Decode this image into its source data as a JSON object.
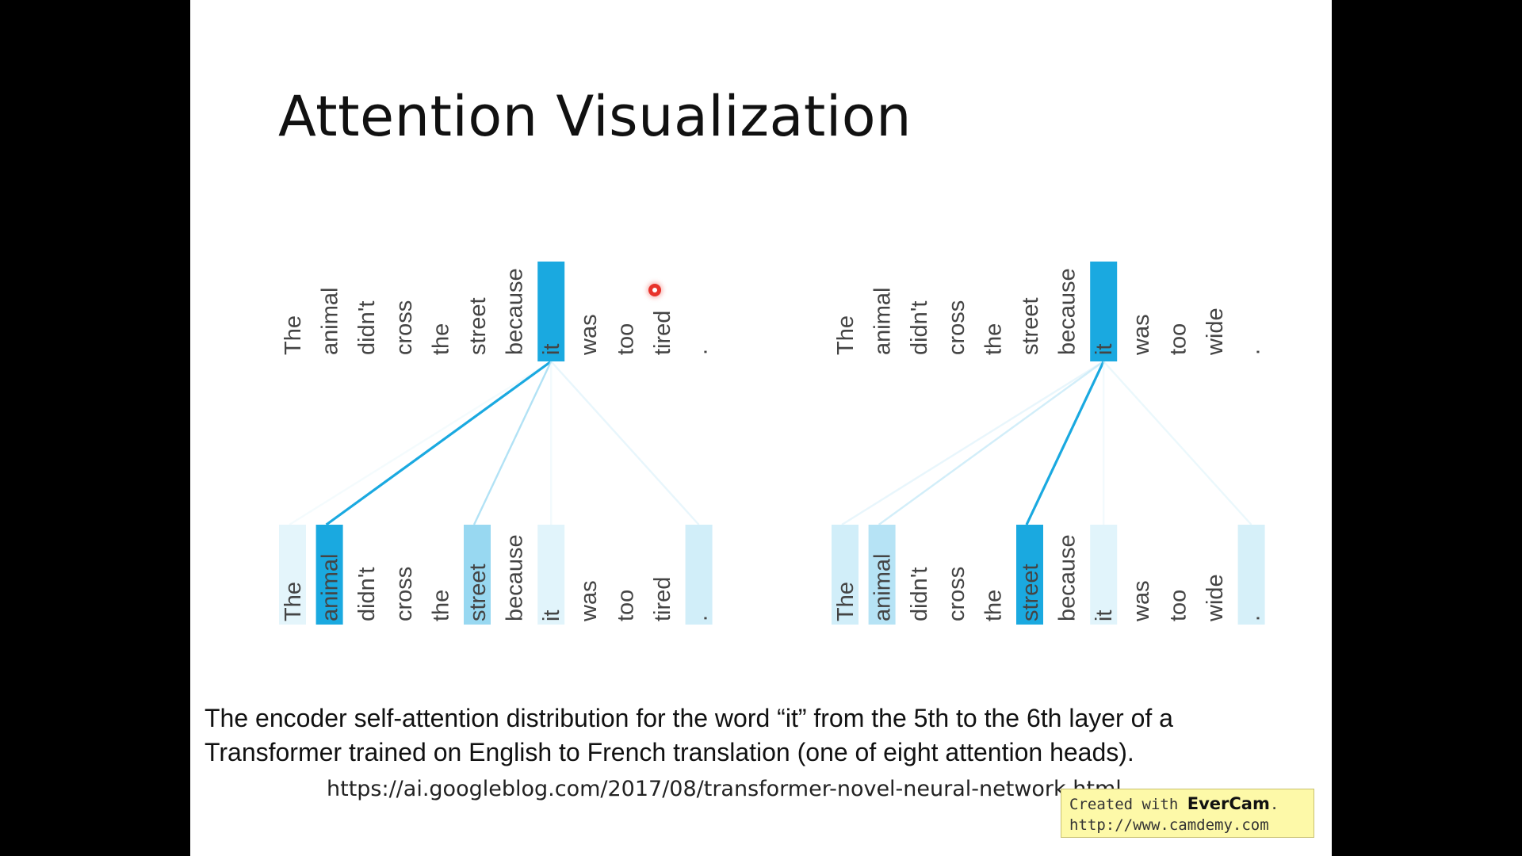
{
  "slide": {
    "title": "Attention Visualization",
    "caption_line1": "The encoder self-attention distribution for the word “it” from the 5th to the 6th layer of a",
    "caption_line2": "Transformer trained on English to French translation (one of eight attention heads).",
    "source_url": "https://ai.googleblog.com/2017/08/transformer-novel-neural-network.html"
  },
  "watermark": {
    "created_with": "Created with",
    "brand": "EverCam",
    "url": "http://www.camdemy.com"
  },
  "colors": {
    "accent": "#1aa9e0",
    "background": "#ffffff",
    "overlay": "#fdf9a8",
    "cursor": "#e8332b"
  },
  "diagrams": [
    {
      "query_word": "it",
      "tokens": [
        "The",
        "animal",
        "didn't",
        "cross",
        "the",
        "street",
        "because",
        "it",
        "was",
        "too",
        "tired",
        "."
      ],
      "query_index": 7,
      "weights": [
        0.12,
        1.0,
        0.0,
        0.0,
        0.0,
        0.45,
        0.0,
        0.13,
        0.0,
        0.0,
        0.0,
        0.2
      ]
    },
    {
      "query_word": "it",
      "tokens": [
        "The",
        "animal",
        "didn't",
        "cross",
        "the",
        "street",
        "because",
        "it",
        "was",
        "too",
        "wide",
        "."
      ],
      "query_index": 7,
      "weights": [
        0.2,
        0.32,
        0.0,
        0.0,
        0.0,
        1.0,
        0.0,
        0.13,
        0.0,
        0.0,
        0.0,
        0.18
      ]
    }
  ],
  "icons": {
    "cursor": "cursor-dot-icon"
  }
}
